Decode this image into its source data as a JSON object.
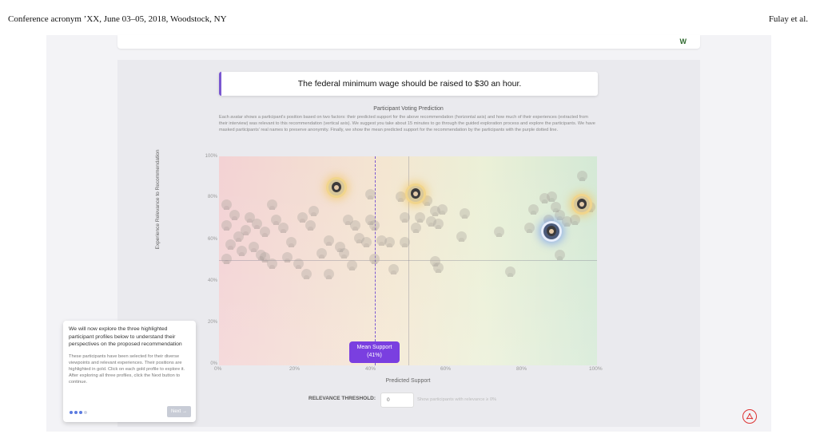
{
  "page_header": {
    "left": "Conference acronym ’XX, June 03–05, 2018, Woodstock, NY",
    "right": "Fulay et al."
  },
  "app": {
    "logo_text": "W",
    "statement": "The federal minimum wage should be raised to $30 an hour.",
    "plot_title": "Participant Voting Prediction",
    "plot_description": "Each avatar shows a participant's position based on two factors: their predicted support for the above recommendation (horizontal axis) and how much of their experiences (extracted from their interview) was relevant to this recommendation (vertical axis). We suggest you take about 15 minutes to go through the guided exploration process and explore the participants. We have masked participants' real names to preserve anonymity. Finally, we show the mean predicted support for the recommendation by the participants with the purple dotted line.",
    "x_axis_label": "Predicted Support",
    "y_axis_label": "Experience Relevance to Recommendation",
    "x_ticks": [
      "0%",
      "20%",
      "40%",
      "60%",
      "80%",
      "100%"
    ],
    "y_ticks": [
      "100%",
      "80%",
      "60%",
      "40%",
      "20%",
      "0%"
    ],
    "mean_support_label": "Mean Support",
    "mean_support_value": "(41%)",
    "mean_support_fraction": 0.41,
    "relevance_threshold_label": "RELEVANCE THRESHOLD:",
    "relevance_threshold_value": "0",
    "relevance_threshold_hint": "Show participants with relevance ≥ 0%"
  },
  "guide": {
    "title": "We will now explore the three highlighted participant profiles below to understand their perspectives on the proposed recommendation",
    "body": "These participants have been selected for their diverse viewpoints and relevant experiences. Their positions are highlighted in gold. Click on each gold profile to explore it. After exploring all three profiles, click the Next button to continue.",
    "next_label": "Next →",
    "steps_total": 4,
    "steps_active": 3
  },
  "colors": {
    "accent": "#7a3fe0",
    "highlight_gold": "#f1d58c",
    "highlight_blue": "#6e96f0"
  },
  "icons": {
    "pdf": "pdf-icon"
  }
}
